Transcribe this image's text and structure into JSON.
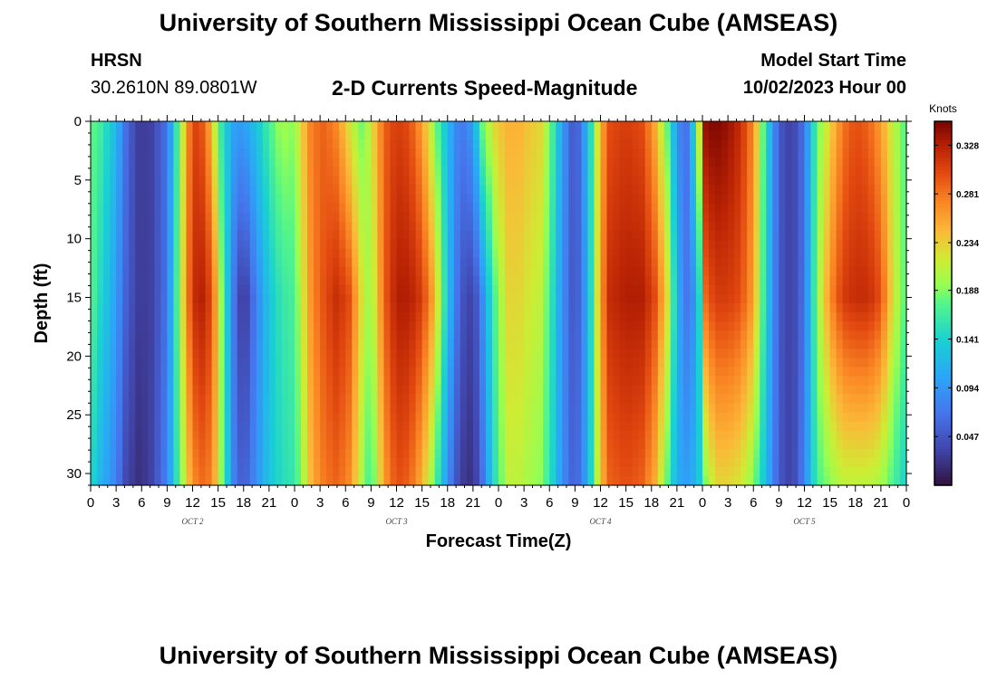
{
  "page": {
    "title": "University of Southern Mississippi Ocean Cube (AMSEAS)",
    "title_repeat": "University of Southern Mississippi Ocean Cube (AMSEAS)",
    "station": "HRSN",
    "coords": "30.2610N  89.0801W",
    "subtitle": "2-D Currents Speed-Magnitude",
    "start_label": "Model Start Time",
    "start_value": "10/02/2023 Hour 00"
  },
  "chart_data": {
    "type": "heatmap",
    "title": "2-D Currents Speed-Magnitude",
    "xlabel": "Forecast Time(Z)",
    "ylabel": "Depth (ft)",
    "x_range_hours": [
      0,
      96
    ],
    "y_range_ft": [
      0,
      31
    ],
    "x_tick_labels": [
      "0",
      "3",
      "6",
      "9",
      "12",
      "15",
      "18",
      "21",
      "0",
      "3",
      "6",
      "9",
      "12",
      "15",
      "18",
      "21",
      "0",
      "3",
      "6",
      "9",
      "12",
      "15",
      "18",
      "21",
      "0",
      "3",
      "6",
      "9",
      "12",
      "15",
      "18",
      "21",
      "0"
    ],
    "y_tick_values": [
      0,
      5,
      10,
      15,
      20,
      25,
      30
    ],
    "y_tick_labels": [
      "0",
      "5",
      "10",
      "15",
      "20",
      "25",
      "30"
    ],
    "date_labels": [
      {
        "text": "OCT 2",
        "hour": 12
      },
      {
        "text": "OCT 3",
        "hour": 36
      },
      {
        "text": "OCT 4",
        "hour": 60
      },
      {
        "text": "OCT 5",
        "hour": 84
      }
    ],
    "colorbar": {
      "unit": "Knots",
      "min": 0.0,
      "max": 0.351,
      "tick_values": [
        0.047,
        0.094,
        0.141,
        0.188,
        0.234,
        0.281,
        0.328
      ],
      "tick_labels": [
        "0.047",
        "0.094",
        "0.141",
        "0.188",
        "0.234",
        "0.281",
        "0.328"
      ]
    },
    "speed_profile": {
      "hours": [
        0,
        1,
        3,
        4,
        5.5,
        7,
        9,
        10.5,
        12,
        13.5,
        14.5,
        15.5,
        17,
        18,
        19.5,
        21,
        22.5,
        24,
        25,
        26,
        27.5,
        29,
        30.5,
        32,
        33,
        34.5,
        36,
        37.5,
        39,
        40.5,
        42,
        43.5,
        45,
        46,
        47.5,
        49,
        50.5,
        51.5,
        53,
        54,
        55.5,
        57,
        58.5,
        60,
        61,
        63,
        65,
        66.5,
        68,
        69,
        70,
        71.5,
        72,
        73.5,
        75,
        76.5,
        78,
        79.5,
        81,
        82.5,
        84,
        85.5,
        87,
        88.5,
        90,
        91.5,
        93,
        94.5,
        96
      ],
      "surface_kn": [
        0.18,
        0.17,
        0.12,
        0.07,
        0.03,
        0.03,
        0.07,
        0.19,
        0.31,
        0.29,
        0.22,
        0.15,
        0.1,
        0.1,
        0.13,
        0.17,
        0.2,
        0.19,
        0.24,
        0.28,
        0.29,
        0.27,
        0.22,
        0.18,
        0.22,
        0.29,
        0.31,
        0.3,
        0.26,
        0.19,
        0.12,
        0.07,
        0.1,
        0.18,
        0.23,
        0.25,
        0.25,
        0.24,
        0.23,
        0.19,
        0.1,
        0.04,
        0.12,
        0.25,
        0.3,
        0.31,
        0.3,
        0.25,
        0.17,
        0.09,
        0.06,
        0.18,
        0.34,
        0.35,
        0.34,
        0.32,
        0.27,
        0.15,
        0.05,
        0.03,
        0.07,
        0.18,
        0.23,
        0.28,
        0.3,
        0.29,
        0.26,
        0.21,
        0.17
      ],
      "mid_kn": [
        0.18,
        0.15,
        0.1,
        0.06,
        0.03,
        0.03,
        0.07,
        0.2,
        0.32,
        0.33,
        0.28,
        0.18,
        0.06,
        0.02,
        0.08,
        0.13,
        0.16,
        0.17,
        0.22,
        0.27,
        0.3,
        0.32,
        0.3,
        0.22,
        0.19,
        0.29,
        0.33,
        0.33,
        0.31,
        0.25,
        0.13,
        0.05,
        0.03,
        0.08,
        0.17,
        0.23,
        0.23,
        0.22,
        0.21,
        0.17,
        0.09,
        0.04,
        0.11,
        0.26,
        0.32,
        0.33,
        0.33,
        0.3,
        0.22,
        0.12,
        0.07,
        0.1,
        0.28,
        0.31,
        0.31,
        0.3,
        0.26,
        0.14,
        0.05,
        0.03,
        0.07,
        0.19,
        0.27,
        0.31,
        0.32,
        0.32,
        0.3,
        0.22,
        0.17
      ],
      "bottom_kn": [
        0.15,
        0.12,
        0.08,
        0.04,
        0.02,
        0.03,
        0.08,
        0.18,
        0.27,
        0.29,
        0.26,
        0.18,
        0.07,
        0.05,
        0.09,
        0.13,
        0.15,
        0.16,
        0.2,
        0.25,
        0.28,
        0.29,
        0.27,
        0.2,
        0.16,
        0.26,
        0.3,
        0.29,
        0.25,
        0.18,
        0.09,
        0.03,
        0.02,
        0.06,
        0.15,
        0.21,
        0.21,
        0.2,
        0.19,
        0.16,
        0.09,
        0.05,
        0.11,
        0.24,
        0.29,
        0.3,
        0.29,
        0.25,
        0.17,
        0.11,
        0.1,
        0.12,
        0.17,
        0.23,
        0.23,
        0.22,
        0.19,
        0.12,
        0.05,
        0.03,
        0.08,
        0.17,
        0.19,
        0.21,
        0.21,
        0.21,
        0.2,
        0.17,
        0.14
      ]
    }
  }
}
